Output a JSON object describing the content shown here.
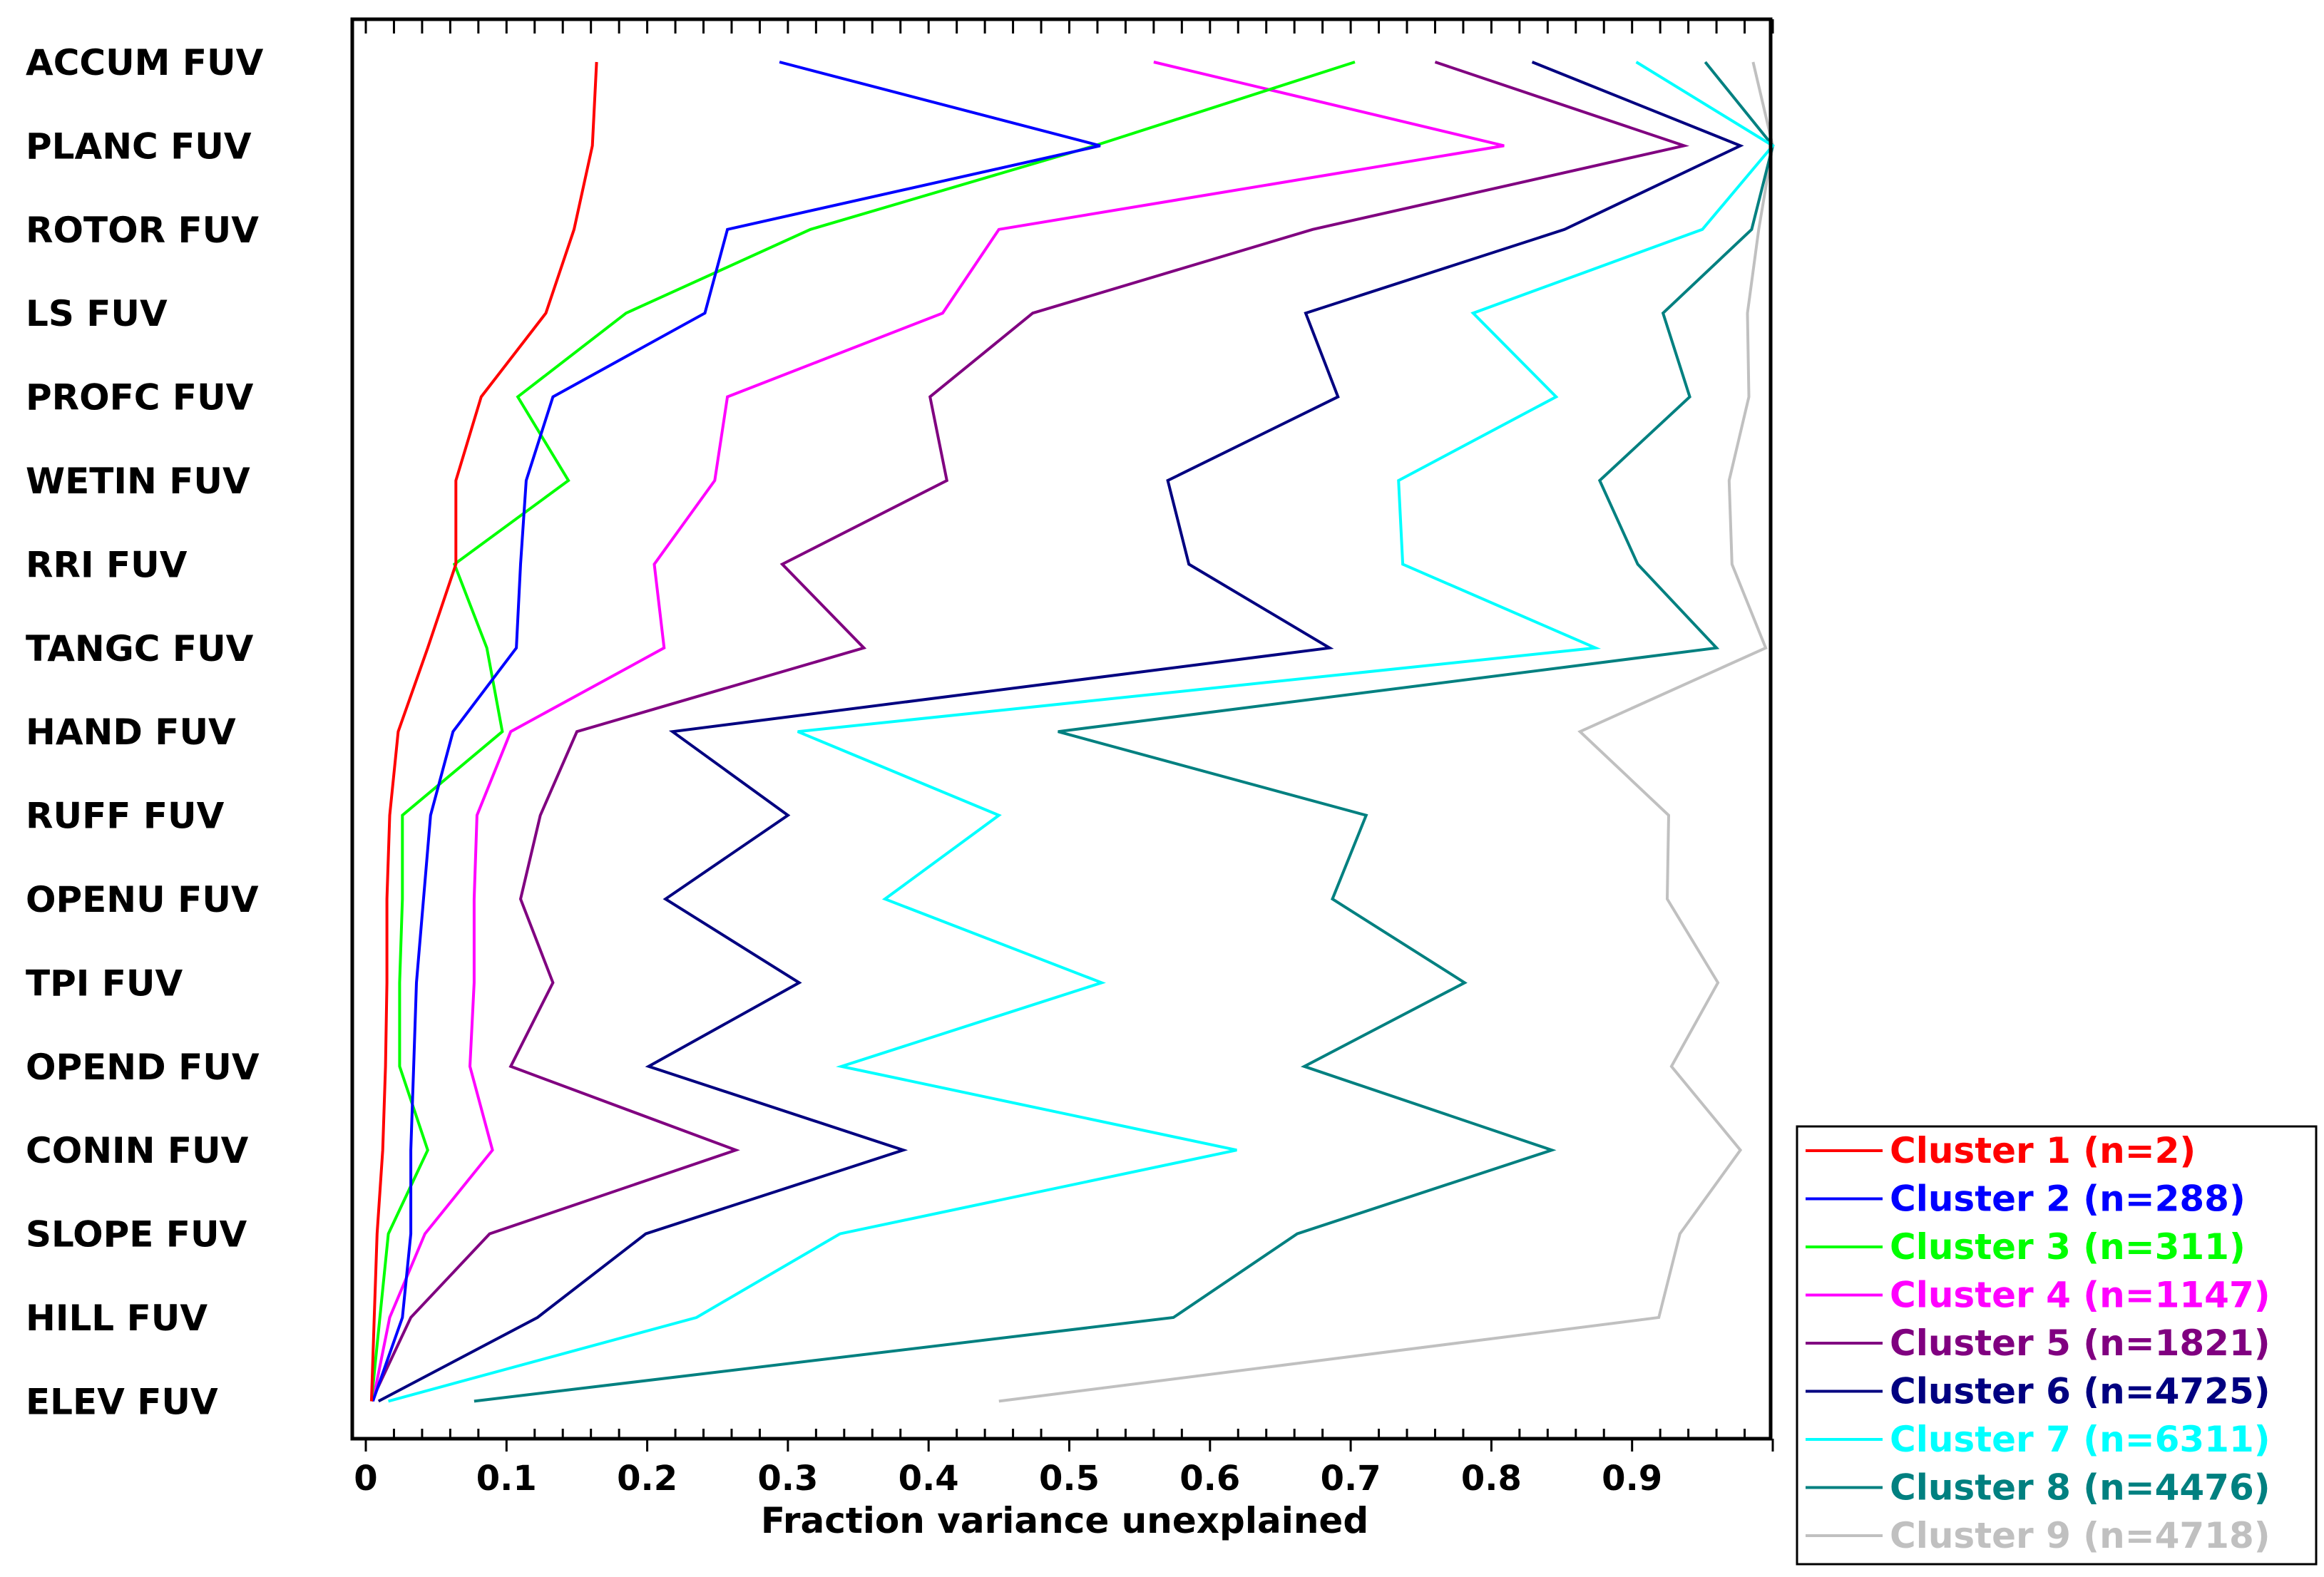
{
  "chart_data": {
    "type": "line",
    "orientation": "horizontal",
    "title": "",
    "xlabel": "Fraction variance unexplained",
    "ylabel": "",
    "xlim": [
      0,
      1.0
    ],
    "x_ticks": [
      "0",
      "0.1",
      "0.2",
      "0.3",
      "0.4",
      "0.5",
      "0.6",
      "0.7",
      "0.8",
      "0.9"
    ],
    "x_tick_values": [
      0,
      0.1,
      0.2,
      0.3,
      0.4,
      0.5,
      0.6,
      0.7,
      0.8,
      0.9
    ],
    "categories": [
      "ACCUM FUV",
      "PLANC FUV",
      "ROTOR FUV",
      "LS FUV",
      "PROFC FUV",
      "WETIN FUV",
      "RRI FUV",
      "TANGC FUV",
      "HAND FUV",
      "RUFF FUV",
      "OPENU FUV",
      "TPI FUV",
      "OPEND FUV",
      "CONIN FUV",
      "SLOPE FUV",
      "HILL FUV",
      "ELEV FUV"
    ],
    "legend_position": "bottom-right",
    "grid": false,
    "series": [
      {
        "name": "Cluster 1 (n=2)",
        "color": "#ff0000",
        "values": [
          0.164,
          0.161,
          0.148,
          0.128,
          0.082,
          0.064,
          0.064,
          0.044,
          0.023,
          0.017,
          0.015,
          0.015,
          0.014,
          0.012,
          0.008,
          0.006,
          0.004
        ]
      },
      {
        "name": "Cluster 2 (n=288)",
        "color": "#0000ff",
        "values": [
          0.294,
          0.522,
          0.257,
          0.241,
          0.133,
          0.114,
          0.11,
          0.107,
          0.062,
          0.046,
          0.041,
          0.036,
          0.034,
          0.032,
          0.032,
          0.026,
          0.005
        ]
      },
      {
        "name": "Cluster 3 (n=311)",
        "color": "#00ff00",
        "values": [
          0.703,
          0.518,
          0.316,
          0.185,
          0.108,
          0.144,
          0.063,
          0.086,
          0.097,
          0.026,
          0.026,
          0.024,
          0.024,
          0.044,
          0.016,
          0.01,
          0.004
        ]
      },
      {
        "name": "Cluster 4 (n=1147)",
        "color": "#ff00ff",
        "values": [
          0.56,
          0.809,
          0.45,
          0.41,
          0.257,
          0.248,
          0.205,
          0.212,
          0.103,
          0.079,
          0.077,
          0.077,
          0.074,
          0.09,
          0.042,
          0.017,
          0.005
        ]
      },
      {
        "name": "Cluster 5 (n=1821)",
        "color": "#800080",
        "values": [
          0.76,
          0.937,
          0.673,
          0.474,
          0.401,
          0.413,
          0.296,
          0.354,
          0.15,
          0.124,
          0.11,
          0.133,
          0.103,
          0.263,
          0.088,
          0.032,
          0.004
        ]
      },
      {
        "name": "Cluster 6 (n=4725)",
        "color": "#000080",
        "values": [
          0.829,
          0.977,
          0.852,
          0.668,
          0.691,
          0.57,
          0.585,
          0.685,
          0.218,
          0.3,
          0.213,
          0.308,
          0.201,
          0.382,
          0.199,
          0.122,
          0.009
        ]
      },
      {
        "name": "Cluster 7 (n=6311)",
        "color": "#00ffff",
        "values": [
          0.903,
          1.0,
          0.95,
          0.787,
          0.846,
          0.734,
          0.737,
          0.874,
          0.307,
          0.45,
          0.369,
          0.523,
          0.338,
          0.619,
          0.337,
          0.235,
          0.016
        ]
      },
      {
        "name": "Cluster 8 (n=4476)",
        "color": "#008080",
        "values": [
          0.952,
          1.0,
          0.985,
          0.922,
          0.941,
          0.877,
          0.904,
          0.96,
          0.492,
          0.711,
          0.687,
          0.781,
          0.667,
          0.843,
          0.662,
          0.574,
          0.077
        ]
      },
      {
        "name": "Cluster 9 (n=4718)",
        "color": "#c0c0c0",
        "values": [
          0.986,
          1.0,
          0.99,
          0.982,
          0.983,
          0.969,
          0.971,
          0.995,
          0.863,
          0.926,
          0.925,
          0.961,
          0.928,
          0.977,
          0.934,
          0.919,
          0.45
        ]
      }
    ]
  }
}
